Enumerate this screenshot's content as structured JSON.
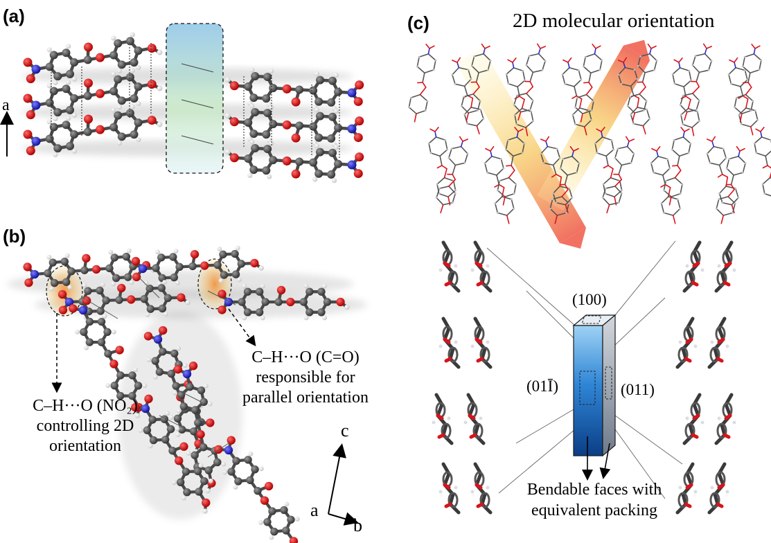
{
  "panels": {
    "a": {
      "label": "(a)",
      "axis_label": "a"
    },
    "b": {
      "label": "(b)",
      "annot_left": [
        "C–H···O (NO₂)",
        "controlling 2D",
        "orientation"
      ],
      "annot_right": [
        "C–H···O (C=O)",
        "responsible for",
        "parallel orientation"
      ],
      "axes": {
        "c": "c",
        "a": "a",
        "b": "b"
      }
    },
    "c": {
      "label": "(c)",
      "title": "2D molecular orientation",
      "faces": {
        "top": "(100)",
        "left": "(01Ī)",
        "right": "(011)"
      },
      "caption": [
        "Bendable faces with",
        "equivalent packing"
      ]
    }
  },
  "colors": {
    "carbon": "#5a5a5a",
    "oxygen": "#d8131b",
    "nitrogen": "#2a2ad6",
    "hydrogen": "#f2f2f2",
    "crystal_blue": "#1f6fc8",
    "highlight_orange": "#f29a3a"
  }
}
